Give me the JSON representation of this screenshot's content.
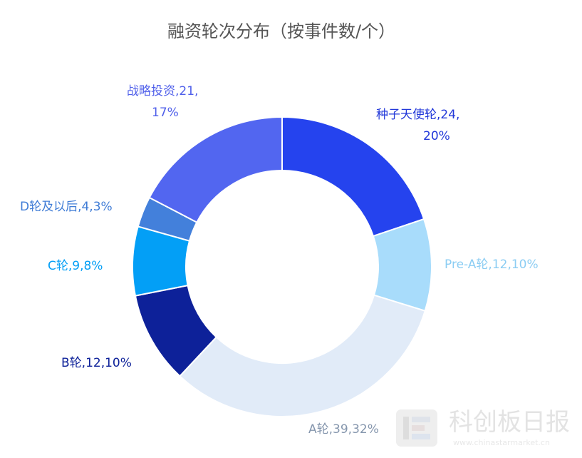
{
  "chart_data": {
    "type": "pie",
    "variant": "donut",
    "title": "融资轮次分布（按事件数/个）",
    "legend": "none",
    "slices": [
      {
        "name": "种子天使轮",
        "value": 24,
        "percent": "20%",
        "color": "#2543ee",
        "label_line1": "种子天使轮,24,",
        "label_line2": "20%",
        "label_color": "#2238d9"
      },
      {
        "name": "Pre-A轮",
        "value": 12,
        "percent": "10%",
        "color": "#a8dcfb",
        "label_line1": "Pre-A轮,12,10%",
        "label_line2": "",
        "label_color": "#8ccdf3"
      },
      {
        "name": "A轮",
        "value": 39,
        "percent": "32%",
        "color": "#e1ebf8",
        "label_line1": "A轮,39,32%",
        "label_line2": "",
        "label_color": "#8596ad"
      },
      {
        "name": "B轮",
        "value": 12,
        "percent": "10%",
        "color": "#0d2199",
        "label_line1": "B轮,12,10%",
        "label_line2": "",
        "label_color": "#0d2199"
      },
      {
        "name": "C轮",
        "value": 9,
        "percent": "8%",
        "color": "#039ff6",
        "label_line1": "C轮,9,8%",
        "label_line2": "",
        "label_color": "#039ff6"
      },
      {
        "name": "D轮及以后",
        "value": 4,
        "percent": "3%",
        "color": "#4380db",
        "label_line1": "D轮及以后,4,3%",
        "label_line2": "",
        "label_color": "#3f7cd6"
      },
      {
        "name": "战略投资",
        "value": 21,
        "percent": "17%",
        "color": "#5266f0",
        "label_line1": "战略投资,21,",
        "label_line2": "17%",
        "label_color": "#5060ea"
      }
    ]
  },
  "watermark": {
    "name": "科创板日报",
    "url": "www.chinastarmarket.cn"
  }
}
